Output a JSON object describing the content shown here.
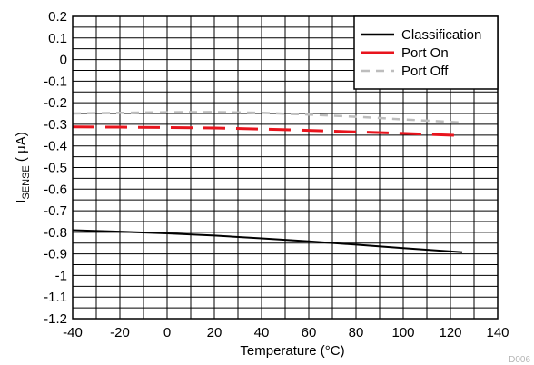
{
  "chart_data": {
    "type": "line",
    "title": "",
    "xlabel": "Temperature (°C)",
    "ylabel": {
      "main": "I",
      "subscript": "SENSE",
      "suffix": " ( µA)"
    },
    "xlim": [
      -40,
      140
    ],
    "ylim": [
      -1.2,
      0.2
    ],
    "x_ticks": [
      "-40",
      "-20",
      "0",
      "20",
      "40",
      "60",
      "80",
      "100",
      "120",
      "140"
    ],
    "y_ticks": [
      "0.2",
      "0.1",
      "0",
      "-0.1",
      "-0.2",
      "-0.3",
      "-0.4",
      "-0.5",
      "-0.6",
      "-0.7",
      "-0.8",
      "-0.9",
      "-1",
      "-1.1",
      "-1.2"
    ],
    "x_tick_values": [
      -40,
      -20,
      0,
      20,
      40,
      60,
      80,
      100,
      120,
      140
    ],
    "y_tick_values": [
      0.2,
      0.1,
      0,
      -0.1,
      -0.2,
      -0.3,
      -0.4,
      -0.5,
      -0.6,
      -0.7,
      -0.8,
      -0.9,
      -1.0,
      -1.1,
      -1.2
    ],
    "grid": true,
    "legend_position": "top-right",
    "series": [
      {
        "name": "Classification",
        "color": "#000000",
        "style": "solid",
        "x": [
          -40,
          -20,
          0,
          20,
          40,
          60,
          80,
          100,
          125
        ],
        "y": [
          -0.79,
          -0.797,
          -0.805,
          -0.815,
          -0.828,
          -0.842,
          -0.857,
          -0.873,
          -0.892
        ]
      },
      {
        "name": "Port On",
        "color": "#e8141d",
        "style": "dashed",
        "x": [
          -40,
          -20,
          0,
          20,
          40,
          60,
          80,
          100,
          125
        ],
        "y": [
          -0.312,
          -0.313,
          -0.315,
          -0.317,
          -0.322,
          -0.328,
          -0.335,
          -0.342,
          -0.352
        ]
      },
      {
        "name": "Port Off",
        "color": "#bdbdbd",
        "style": "dashed",
        "x": [
          -40,
          -20,
          0,
          20,
          40,
          60,
          80,
          100,
          125
        ],
        "y": [
          -0.25,
          -0.247,
          -0.244,
          -0.243,
          -0.247,
          -0.255,
          -0.265,
          -0.277,
          -0.292
        ]
      }
    ],
    "figure_id": "D006"
  }
}
